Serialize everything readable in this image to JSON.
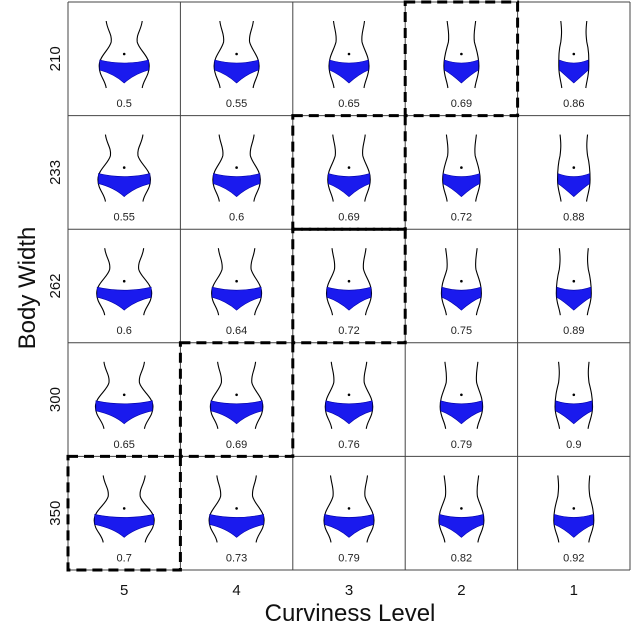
{
  "axis": {
    "x_title": "Curviness Level",
    "y_title": "Body Width"
  },
  "columns": [
    "5",
    "4",
    "3",
    "2",
    "1"
  ],
  "rows": [
    "210",
    "233",
    "262",
    "300",
    "350"
  ],
  "cells": [
    [
      "0.5",
      "0.55",
      "0.65",
      "0.69",
      "0.86"
    ],
    [
      "0.55",
      "0.6",
      "0.69",
      "0.72",
      "0.88"
    ],
    [
      "0.6",
      "0.64",
      "0.72",
      "0.75",
      "0.89"
    ],
    [
      "0.65",
      "0.69",
      "0.76",
      "0.79",
      "0.9"
    ],
    [
      "0.7",
      "0.73",
      "0.79",
      "0.82",
      "0.92"
    ]
  ],
  "highlighted_cells": [
    [
      0,
      3
    ],
    [
      1,
      2
    ],
    [
      2,
      2
    ],
    [
      3,
      1
    ],
    [
      4,
      0
    ]
  ],
  "colors": {
    "garment": "#1a1aee",
    "outline": "#000000",
    "grid": "#444444",
    "highlight_border": "#000000"
  }
}
